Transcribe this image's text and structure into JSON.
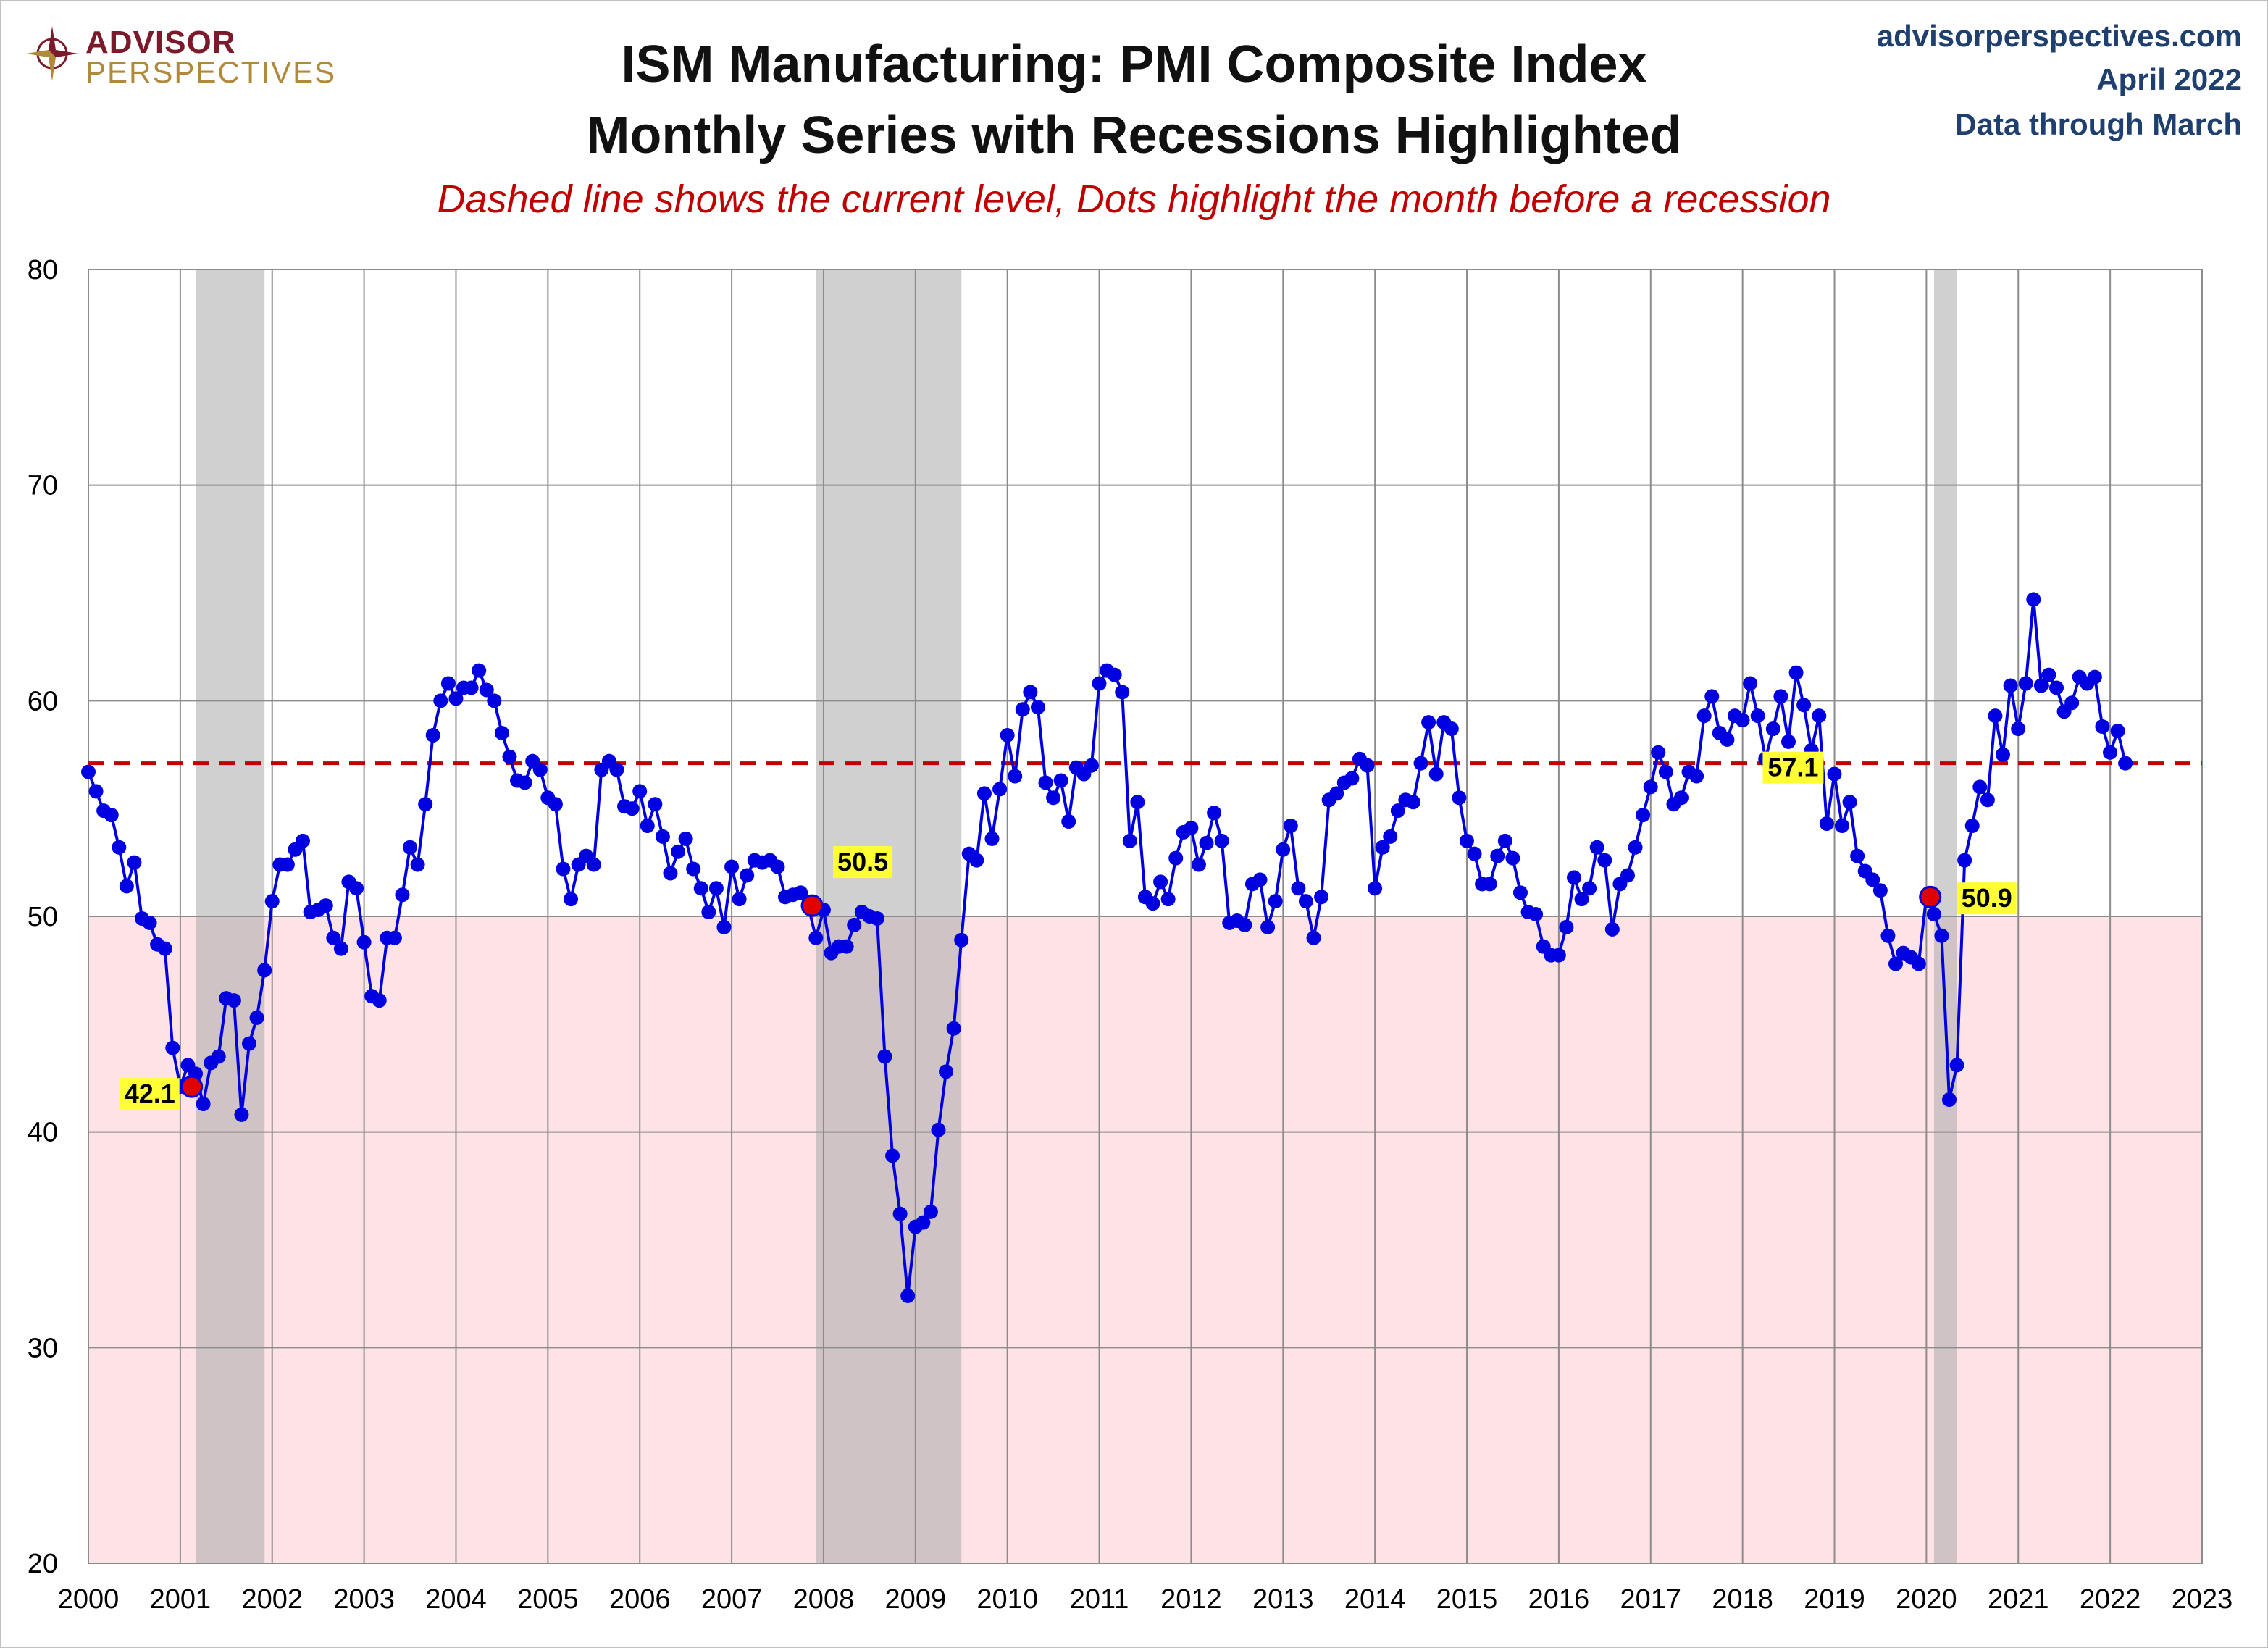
{
  "branding": {
    "logo_line1": "ADVISOR",
    "logo_line2": "PERSPECTIVES",
    "logo_icon": "compass-rose-icon",
    "site": "advisorperspectives.com",
    "date": "April 2022",
    "data_through": "Data through March"
  },
  "chart_data": {
    "type": "line",
    "title": "ISM Manufacturing: PMI Composite Index",
    "subtitle": "Monthly Series with Recessions Highlighted",
    "note": "Dashed line shows the current level, Dots highlight the month before a recession",
    "xlabel": "",
    "ylabel": "",
    "ylim": [
      20,
      80
    ],
    "xlim": [
      2000,
      2023
    ],
    "y_ticks": [
      20,
      30,
      40,
      50,
      60,
      70,
      80
    ],
    "x_ticks": [
      2000,
      2001,
      2002,
      2003,
      2004,
      2005,
      2006,
      2007,
      2008,
      2009,
      2010,
      2011,
      2012,
      2013,
      2014,
      2015,
      2016,
      2017,
      2018,
      2019,
      2020,
      2021,
      2022,
      2023
    ],
    "grid": true,
    "contraction_zone_below": 50,
    "current_level": 57.1,
    "current_level_label": "57.1",
    "recessions": [
      {
        "start": 2001.167,
        "end": 2001.917
      },
      {
        "start": 2007.917,
        "end": 2009.5
      },
      {
        "start": 2020.083,
        "end": 2020.333
      }
    ],
    "highlight_points": [
      {
        "x": 2001.125,
        "y": 42.1,
        "label": "42.1"
      },
      {
        "x": 2007.875,
        "y": 50.5,
        "label": "50.5"
      },
      {
        "x": 2020.042,
        "y": 50.9,
        "label": "50.9"
      }
    ],
    "series": [
      {
        "start": 2000.0,
        "step": 0.08333,
        "values": [
          56.7,
          55.8,
          54.9,
          54.7,
          53.2,
          51.4,
          52.5,
          49.9,
          49.7,
          48.7,
          48.5,
          43.9,
          42.1,
          43.1,
          42.7,
          41.3,
          43.2,
          43.5,
          46.2,
          46.1,
          40.8,
          44.1,
          45.3,
          47.5,
          50.7,
          52.4,
          52.4,
          53.1,
          53.5,
          50.2,
          50.3,
          50.5,
          49.0,
          48.5,
          51.6,
          51.3,
          48.8,
          46.3,
          46.1,
          49.0,
          49.0,
          51.0,
          53.2,
          52.4,
          55.2,
          58.4,
          60.0,
          60.8,
          60.1,
          60.6,
          60.6,
          61.4,
          60.5,
          60.0,
          58.5,
          57.4,
          56.3,
          56.2,
          57.2,
          56.8,
          55.5,
          55.2,
          52.2,
          50.8,
          52.4,
          52.8,
          52.4,
          56.8,
          57.2,
          56.8,
          55.1,
          55.0,
          55.8,
          54.2,
          55.2,
          53.7,
          52.0,
          53.0,
          53.6,
          52.2,
          51.3,
          50.2,
          51.3,
          49.5,
          52.3,
          50.8,
          51.9,
          52.6,
          52.5,
          52.6,
          52.3,
          50.9,
          51.0,
          51.1,
          50.5,
          49.0,
          50.3,
          48.3,
          48.6,
          48.6,
          49.6,
          50.2,
          50.0,
          49.9,
          43.5,
          38.9,
          36.2,
          32.4,
          35.6,
          35.8,
          36.3,
          40.1,
          42.8,
          44.8,
          48.9,
          52.9,
          52.6,
          55.7,
          53.6,
          55.9,
          58.4,
          56.5,
          59.6,
          60.4,
          59.7,
          56.2,
          55.5,
          56.3,
          54.4,
          56.9,
          56.6,
          57.0,
          60.8,
          61.4,
          61.2,
          60.4,
          53.5,
          55.3,
          50.9,
          50.6,
          51.6,
          50.8,
          52.7,
          53.9,
          54.1,
          52.4,
          53.4,
          54.8,
          53.5,
          49.7,
          49.8,
          49.6,
          51.5,
          51.7,
          49.5,
          50.7,
          53.1,
          54.2,
          51.3,
          50.7,
          49.0,
          50.9,
          55.4,
          55.7,
          56.2,
          56.4,
          57.3,
          57.0,
          51.3,
          53.2,
          53.7,
          54.9,
          55.4,
          55.3,
          57.1,
          59.0,
          56.6,
          59.0,
          58.7,
          55.5,
          53.5,
          52.9,
          51.5,
          51.5,
          52.8,
          53.5,
          52.7,
          51.1,
          50.2,
          50.1,
          48.6,
          48.2,
          48.2,
          49.5,
          51.8,
          50.8,
          51.3,
          53.2,
          52.6,
          49.4,
          51.5,
          51.9,
          53.2,
          54.7,
          56.0,
          57.6,
          56.7,
          55.2,
          55.5,
          56.7,
          56.5,
          59.3,
          60.2,
          58.5,
          58.2,
          59.3,
          59.1,
          60.8,
          59.3,
          57.3,
          58.7,
          60.2,
          58.1,
          61.3,
          59.8,
          57.7,
          59.3,
          54.3,
          56.6,
          54.2,
          55.3,
          52.8,
          52.1,
          51.7,
          51.2,
          49.1,
          47.8,
          48.3,
          48.1,
          47.8,
          50.9,
          50.1,
          49.1,
          41.5,
          43.1,
          52.6,
          54.2,
          56.0,
          55.4,
          59.3,
          57.5,
          60.7,
          58.7,
          60.8,
          64.7,
          60.7,
          61.2,
          60.6,
          59.5,
          59.9,
          61.1,
          60.8,
          61.1,
          58.8,
          57.6,
          58.6,
          57.1
        ]
      }
    ]
  }
}
